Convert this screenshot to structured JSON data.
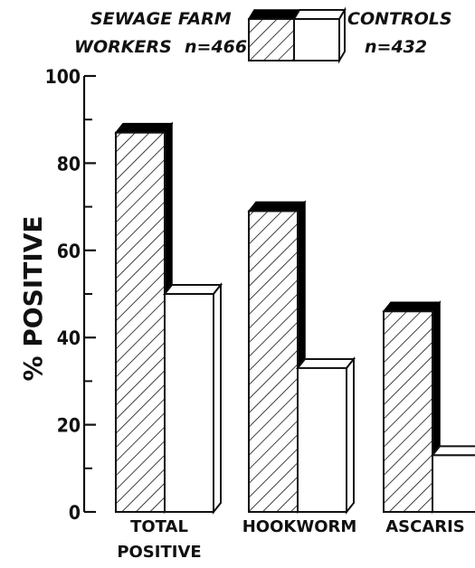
{
  "chart_data": {
    "type": "bar",
    "categories": [
      [
        "TOTAL",
        "POSITIVE"
      ],
      [
        "HOOKWORM"
      ],
      [
        "ASCARIS"
      ]
    ],
    "series": [
      {
        "name_lines": [
          "SEWAGE FARM",
          "WORKERS"
        ],
        "n_label": "n=466",
        "values": [
          87,
          69,
          46
        ],
        "style": "hatched"
      },
      {
        "name_lines": [
          "CONTROLS"
        ],
        "n_label": "n=432",
        "values": [
          50,
          33,
          13
        ],
        "style": "white"
      }
    ],
    "ylabel": "% POSITIVE",
    "ylim": [
      0,
      100
    ],
    "yticks": [
      0,
      20,
      40,
      60,
      80,
      100
    ],
    "ytick_labels": [
      "0",
      "20",
      "40",
      "60",
      "80",
      "100"
    ],
    "legend_position": "top"
  }
}
